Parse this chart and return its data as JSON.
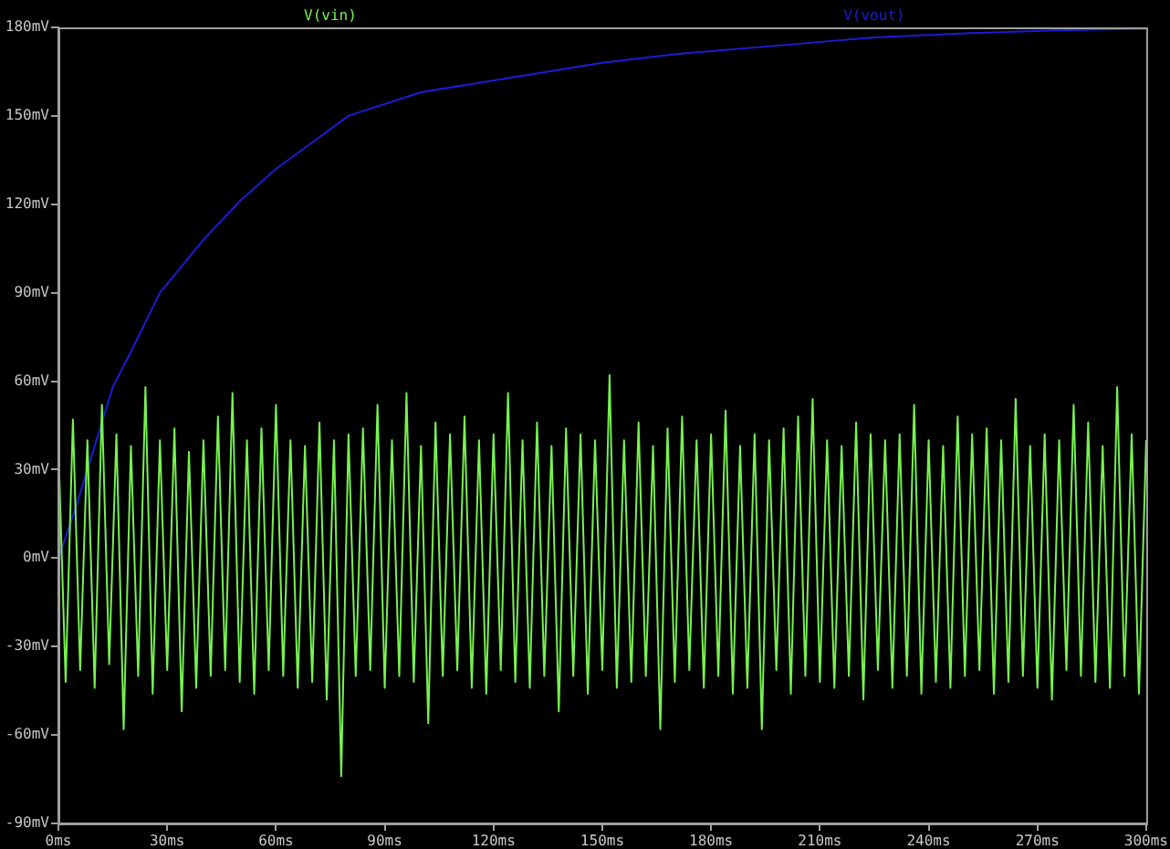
{
  "chart_data": {
    "type": "line",
    "legend": "top",
    "marker": "none",
    "line_style": "solid",
    "grid": false,
    "xlim": [
      0,
      300
    ],
    "ylim": [
      -90,
      180
    ],
    "xticks": [
      {
        "value": 0,
        "label": "0ms"
      },
      {
        "value": 30,
        "label": "30ms"
      },
      {
        "value": 60,
        "label": "60ms"
      },
      {
        "value": 90,
        "label": "90ms"
      },
      {
        "value": 120,
        "label": "120ms"
      },
      {
        "value": 150,
        "label": "150ms"
      },
      {
        "value": 180,
        "label": "180ms"
      },
      {
        "value": 210,
        "label": "210ms"
      },
      {
        "value": 240,
        "label": "240ms"
      },
      {
        "value": 270,
        "label": "270ms"
      },
      {
        "value": 300,
        "label": "300ms"
      }
    ],
    "yticks": [
      {
        "value": -90,
        "label": "-90mV"
      },
      {
        "value": -60,
        "label": "-60mV"
      },
      {
        "value": -30,
        "label": "-30mV"
      },
      {
        "value": 0,
        "label": "0mV"
      },
      {
        "value": 30,
        "label": "30mV"
      },
      {
        "value": 60,
        "label": "60mV"
      },
      {
        "value": 90,
        "label": "90mV"
      },
      {
        "value": 120,
        "label": "120mV"
      },
      {
        "value": 150,
        "label": "150mV"
      },
      {
        "value": 180,
        "label": "180mV"
      }
    ],
    "series": [
      {
        "name": "V(vin)",
        "color": "#77f24f",
        "x": [
          0,
          2,
          4,
          6,
          8,
          10,
          12,
          14,
          16,
          18,
          20,
          22,
          24,
          26,
          28,
          30,
          32,
          34,
          36,
          38,
          40,
          42,
          44,
          46,
          48,
          50,
          52,
          54,
          56,
          58,
          60,
          62,
          64,
          66,
          68,
          70,
          72,
          74,
          76,
          78,
          80,
          82,
          84,
          86,
          88,
          90,
          92,
          94,
          96,
          98,
          100,
          102,
          104,
          106,
          108,
          110,
          112,
          114,
          116,
          118,
          120,
          122,
          124,
          126,
          128,
          130,
          132,
          134,
          136,
          138,
          140,
          142,
          144,
          146,
          148,
          150,
          152,
          154,
          156,
          158,
          160,
          162,
          164,
          166,
          168,
          170,
          172,
          174,
          176,
          178,
          180,
          182,
          184,
          186,
          188,
          190,
          192,
          194,
          196,
          198,
          200,
          202,
          204,
          206,
          208,
          210,
          212,
          214,
          216,
          218,
          220,
          222,
          224,
          226,
          228,
          230,
          232,
          234,
          236,
          238,
          240,
          242,
          244,
          246,
          248,
          250,
          252,
          254,
          256,
          258,
          260,
          262,
          264,
          266,
          268,
          270,
          272,
          274,
          276,
          278,
          280,
          282,
          284,
          286,
          288,
          290,
          292,
          294,
          296,
          298,
          300
        ],
        "values": [
          38,
          -42,
          47,
          -38,
          40,
          -44,
          52,
          -36,
          42,
          -58,
          38,
          -40,
          58,
          -46,
          40,
          -38,
          44,
          -52,
          36,
          -44,
          40,
          -40,
          48,
          -38,
          56,
          -42,
          40,
          -46,
          44,
          -38,
          52,
          -40,
          40,
          -44,
          38,
          -42,
          46,
          -48,
          40,
          -74,
          42,
          -40,
          44,
          -38,
          52,
          -44,
          40,
          -40,
          56,
          -42,
          38,
          -56,
          46,
          -40,
          42,
          -38,
          48,
          -44,
          40,
          -46,
          42,
          -38,
          56,
          -42,
          40,
          -44,
          46,
          -40,
          38,
          -52,
          44,
          -40,
          42,
          -46,
          40,
          -38,
          62,
          -44,
          40,
          -42,
          46,
          -40,
          38,
          -58,
          44,
          -42,
          48,
          -38,
          40,
          -44,
          42,
          -40,
          50,
          -46,
          38,
          -44,
          42,
          -58,
          40,
          -38,
          44,
          -46,
          48,
          -40,
          54,
          -42,
          40,
          -44,
          38,
          -40,
          46,
          -48,
          42,
          -38,
          40,
          -44,
          42,
          -40,
          52,
          -46,
          40,
          -42,
          38,
          -44,
          48,
          -40,
          42,
          -38,
          44,
          -46,
          40,
          -42,
          54,
          -40,
          38,
          -44,
          42,
          -48,
          40,
          -38,
          52,
          -40,
          46,
          -42,
          38,
          -44,
          58,
          -40,
          42,
          -46,
          40
        ]
      },
      {
        "name": "V(vout)",
        "color": "#1c1cd6",
        "x": [
          0,
          5,
          10,
          15,
          20,
          28,
          40,
          50,
          60,
          70,
          80,
          100,
          130,
          150,
          171,
          200,
          224,
          250,
          275,
          300
        ],
        "values": [
          0,
          18,
          38,
          58,
          70,
          90,
          108,
          121,
          132,
          141,
          150,
          158,
          164,
          168,
          171,
          174,
          176.5,
          178,
          179,
          179.5
        ]
      }
    ]
  }
}
